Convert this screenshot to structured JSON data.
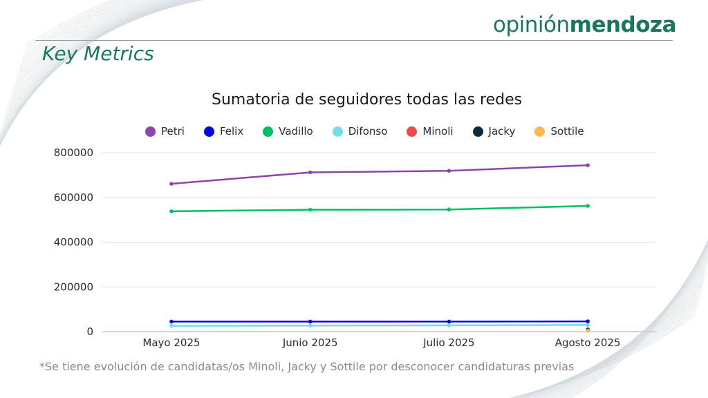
{
  "brand": {
    "logo_light": "opinión",
    "logo_bold": "mendoza",
    "color": "#17785e"
  },
  "page": {
    "section_title": "Key Metrics"
  },
  "chart_data": {
    "type": "line",
    "title": "Sumatoria de seguidores todas las redes",
    "xlabel": "",
    "ylabel": "",
    "categories": [
      "Mayo 2025",
      "Junio 2025",
      "Julio 2025",
      "Agosto 2025"
    ],
    "ylim": [
      0,
      800000
    ],
    "yticks": [
      0,
      200000,
      400000,
      600000,
      800000
    ],
    "ytick_labels": [
      "0",
      "200000",
      "400000",
      "600000",
      "800000"
    ],
    "grid": true,
    "legend_position": "top",
    "series": [
      {
        "name": "Petri",
        "color": "#8e44ad",
        "values": [
          661000,
          712000,
          719000,
          744000
        ]
      },
      {
        "name": "Felix",
        "color": "#0000e6",
        "values": [
          45000,
          45000,
          45000,
          46000
        ]
      },
      {
        "name": "Vadillo",
        "color": "#00c060",
        "values": [
          538000,
          545000,
          546000,
          562000
        ]
      },
      {
        "name": "Difonso",
        "color": "#6fe0e6",
        "values": [
          26000,
          27000,
          28000,
          30000
        ]
      },
      {
        "name": "Minoli",
        "color": "#f54848",
        "values": [
          null,
          null,
          null,
          8000
        ]
      },
      {
        "name": "Jacky",
        "color": "#0c2a3a",
        "values": [
          null,
          null,
          null,
          10000
        ]
      },
      {
        "name": "Sottile",
        "color": "#ffb84d",
        "values": [
          null,
          null,
          null,
          5000
        ]
      }
    ]
  },
  "footnote": "*Se tiene evolución de candidatas/os Minoli, Jacky y Sottile por desconocer candidaturas previas"
}
